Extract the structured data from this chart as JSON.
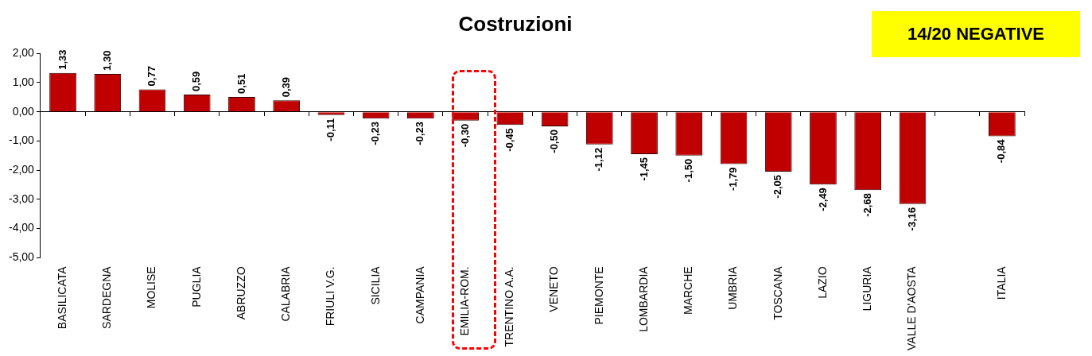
{
  "chart_data": {
    "type": "bar",
    "title": "Costruzioni",
    "categories": [
      "BASILICATA",
      "SARDEGNA",
      "MOLISE",
      "PUGLIA",
      "ABRUZZO",
      "CALABRIA",
      "FRIULI V.G.",
      "SICILIA",
      "CAMPANIA",
      "EMILIA-ROM.",
      "TRENTINO A.A.",
      "VENETO",
      "PIEMONTE",
      "LOMBARDIA",
      "MARCHE",
      "UMBRIA",
      "TOSCANA",
      "LAZIO",
      "LIGURIA",
      "VALLE D'AOSTA",
      null,
      "ITALIA"
    ],
    "values": [
      1.33,
      1.3,
      0.77,
      0.59,
      0.51,
      0.39,
      -0.11,
      -0.23,
      -0.23,
      -0.3,
      -0.45,
      -0.5,
      -1.12,
      -1.45,
      -1.5,
      -1.79,
      -2.05,
      -2.49,
      -2.68,
      -3.16,
      null,
      -0.84
    ],
    "value_labels": [
      "1,33",
      "1,30",
      "0,77",
      "0,59",
      "0,51",
      "0,39",
      "-0,11",
      "-0,23",
      "-0,23",
      "-0,30",
      "-0,45",
      "-0,50",
      "-1,12",
      "-1,45",
      "-1,50",
      "-1,79",
      "-2,05",
      "-2,49",
      "-2,68",
      "-3,16",
      null,
      "-0,84"
    ],
    "color": "#c00000",
    "ylim": [
      -5,
      2
    ],
    "yticks": [
      {
        "value": 2,
        "label": "2,00"
      },
      {
        "value": 1,
        "label": "1,00"
      },
      {
        "value": 0,
        "label": "0,00"
      },
      {
        "value": -1,
        "label": "-1,00"
      },
      {
        "value": -2,
        "label": "-2,00"
      },
      {
        "value": -3,
        "label": "-3,00"
      },
      {
        "value": -4,
        "label": "-4,00"
      },
      {
        "value": -5,
        "label": "-5,00"
      }
    ],
    "annotations": [
      "14/20 NEGATIVE"
    ],
    "legend": false
  }
}
